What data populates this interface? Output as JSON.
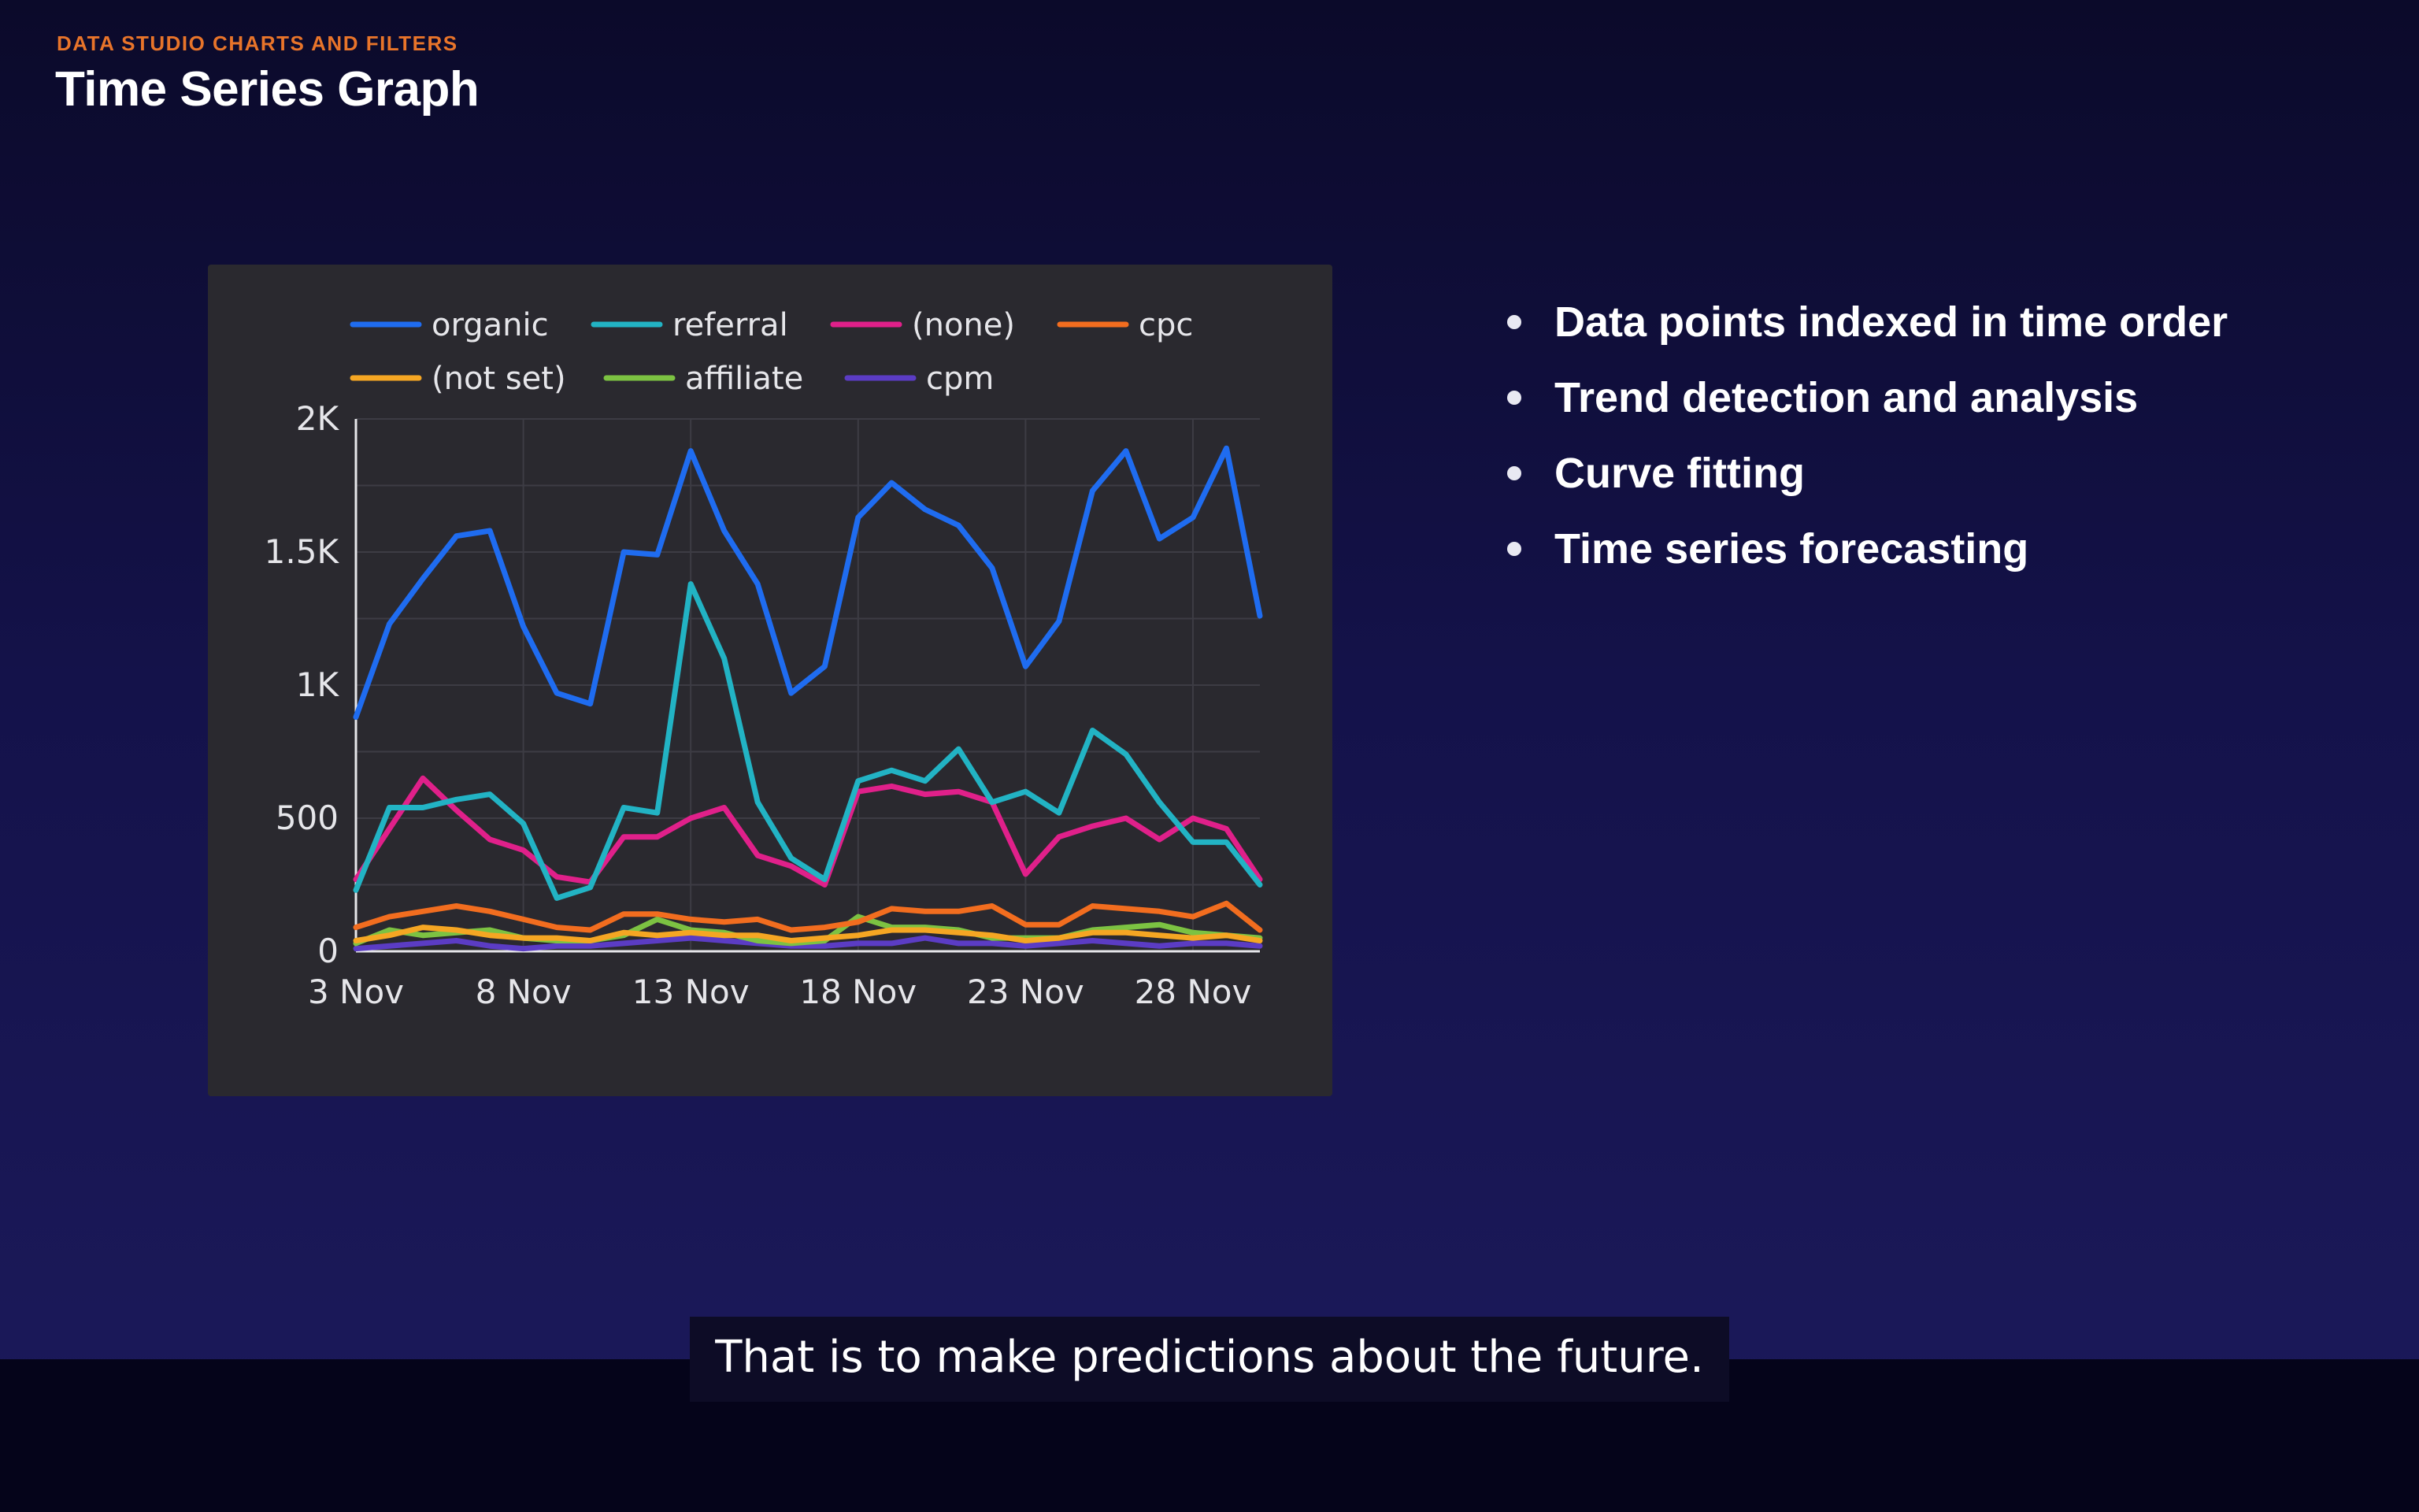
{
  "header": {
    "kicker": "DATA STUDIO CHARTS AND FILTERS",
    "title": "Time Series Graph"
  },
  "bullets": [
    "Data points indexed in time order",
    "Trend detection and analysis",
    "Curve fitting",
    "Time series forecasting"
  ],
  "caption": "That is to make predictions about the future.",
  "chart_data": {
    "type": "line",
    "x": [
      "3 Nov",
      "4 Nov",
      "5 Nov",
      "6 Nov",
      "7 Nov",
      "8 Nov",
      "9 Nov",
      "10 Nov",
      "11 Nov",
      "12 Nov",
      "13 Nov",
      "14 Nov",
      "15 Nov",
      "16 Nov",
      "17 Nov",
      "18 Nov",
      "19 Nov",
      "20 Nov",
      "21 Nov",
      "22 Nov",
      "23 Nov",
      "24 Nov",
      "25 Nov",
      "26 Nov",
      "27 Nov",
      "28 Nov",
      "29 Nov",
      "30 Nov"
    ],
    "x_ticks": [
      "3 Nov",
      "8 Nov",
      "13 Nov",
      "18 Nov",
      "23 Nov",
      "28 Nov"
    ],
    "y_ticks": [
      "0",
      "500",
      "1K",
      "1.5K",
      "2K"
    ],
    "ylim": [
      0,
      2000
    ],
    "grid": true,
    "legend_position": "top",
    "series": [
      {
        "name": "organic",
        "color": "#1f6cf0",
        "values": [
          880,
          1230,
          1400,
          1560,
          1580,
          1220,
          970,
          930,
          1500,
          1490,
          1880,
          1580,
          1380,
          970,
          1070,
          1630,
          1760,
          1660,
          1600,
          1440,
          1070,
          1240,
          1730,
          1880,
          1550,
          1630,
          1890,
          1260
        ]
      },
      {
        "name": "referral",
        "color": "#22b3c4",
        "values": [
          230,
          540,
          540,
          570,
          590,
          480,
          200,
          240,
          540,
          520,
          1380,
          1100,
          560,
          350,
          270,
          640,
          680,
          640,
          760,
          560,
          600,
          520,
          830,
          740,
          560,
          410,
          410,
          250
        ]
      },
      {
        "name": "(none)",
        "color": "#e0208a",
        "values": [
          270,
          460,
          650,
          530,
          420,
          380,
          280,
          260,
          430,
          430,
          500,
          540,
          360,
          320,
          250,
          600,
          620,
          590,
          600,
          560,
          290,
          430,
          470,
          500,
          420,
          500,
          460,
          270
        ]
      },
      {
        "name": "cpc",
        "color": "#f26d1f",
        "values": [
          90,
          130,
          150,
          170,
          150,
          120,
          90,
          80,
          140,
          140,
          120,
          110,
          120,
          80,
          90,
          110,
          160,
          150,
          150,
          170,
          100,
          100,
          170,
          160,
          150,
          130,
          180,
          80
        ]
      },
      {
        "name": "(not set)",
        "color": "#f5a623",
        "values": [
          40,
          60,
          90,
          80,
          60,
          50,
          50,
          40,
          70,
          60,
          70,
          60,
          60,
          40,
          50,
          60,
          80,
          80,
          70,
          60,
          40,
          50,
          70,
          70,
          60,
          50,
          60,
          40
        ]
      },
      {
        "name": "affiliate",
        "color": "#7cc242",
        "values": [
          30,
          80,
          60,
          70,
          80,
          50,
          40,
          40,
          60,
          120,
          80,
          70,
          40,
          30,
          40,
          130,
          90,
          90,
          80,
          50,
          50,
          50,
          80,
          90,
          100,
          70,
          60,
          50
        ]
      },
      {
        "name": "cpm",
        "color": "#5b3cc4",
        "values": [
          10,
          20,
          30,
          40,
          20,
          10,
          20,
          20,
          30,
          40,
          50,
          40,
          30,
          20,
          20,
          30,
          30,
          50,
          30,
          30,
          20,
          30,
          40,
          30,
          20,
          30,
          30,
          20
        ]
      }
    ]
  }
}
